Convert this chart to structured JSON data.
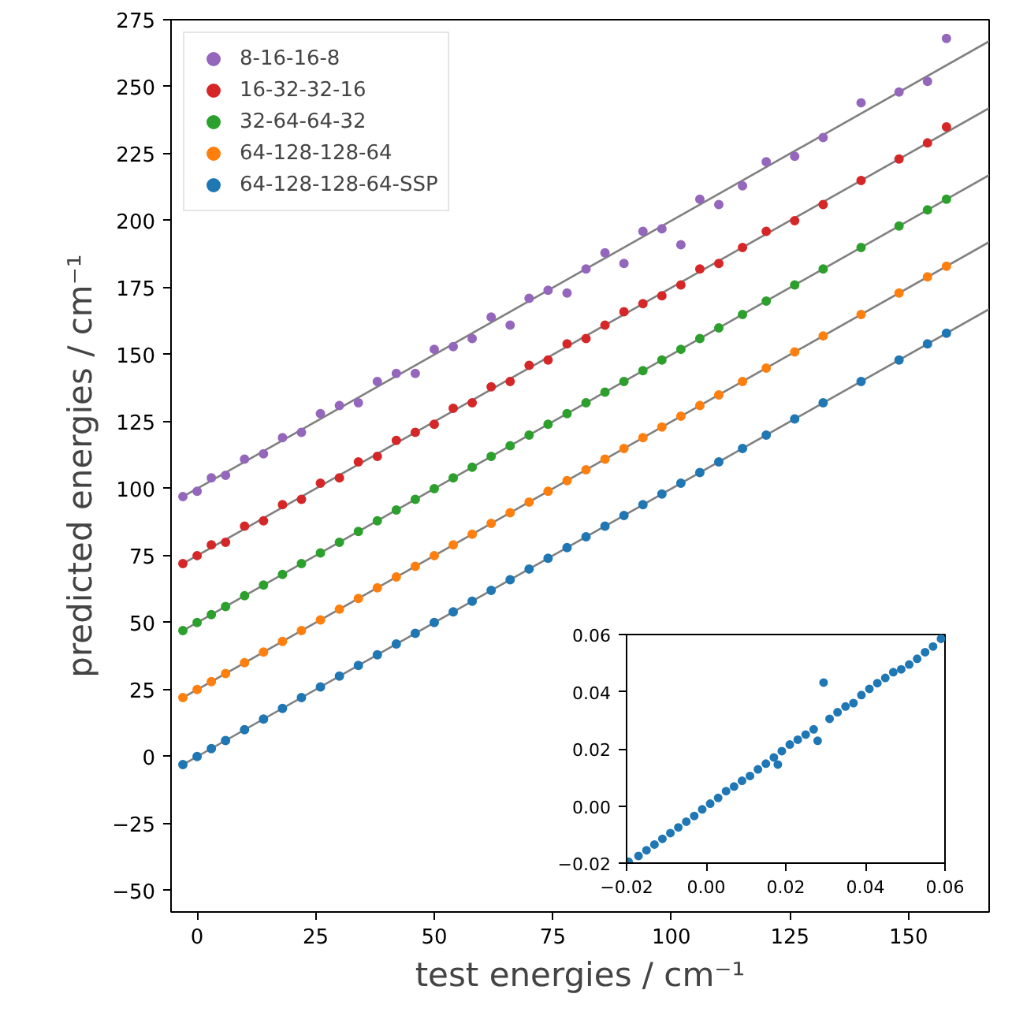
{
  "chart_data": [
    {
      "type": "scatter",
      "xlabel": "test energies / cm⁻¹",
      "ylabel": "predicted energies / cm⁻¹",
      "xlim": [
        -5.5,
        167
      ],
      "ylim": [
        -58,
        275
      ],
      "xticks": [
        0,
        25,
        50,
        75,
        100,
        125,
        150
      ],
      "yticks": [
        {
          "value": -50,
          "label": "−50"
        },
        {
          "value": -25,
          "label": "−25"
        },
        0,
        25,
        50,
        75,
        100,
        125,
        150,
        175,
        200,
        225,
        250,
        275
      ],
      "grid": false,
      "legend": "top left",
      "marker": "circle",
      "x": [
        -3,
        0,
        3,
        6,
        10,
        14,
        18,
        22,
        26,
        30,
        34,
        38,
        42,
        46,
        50,
        54,
        58,
        62,
        66,
        70,
        74,
        78,
        82,
        86,
        90,
        94,
        98,
        102,
        106,
        110,
        115,
        120,
        126,
        132,
        140,
        148,
        154,
        158
      ],
      "series": [
        {
          "name": "8-16-16-8",
          "color": "#9467bd",
          "values": [
            97,
            99,
            104,
            105,
            111,
            113,
            119,
            121,
            128,
            131,
            132,
            140,
            143,
            143,
            152,
            153,
            156,
            164,
            161,
            171,
            174,
            173,
            182,
            188,
            184,
            196,
            197,
            191,
            208,
            206,
            213,
            222,
            224,
            231,
            244,
            248,
            252,
            268
          ]
        },
        {
          "name": "16-32-32-16",
          "color": "#d62728",
          "values": [
            72,
            75,
            79,
            80,
            86,
            88,
            94,
            96,
            102,
            104,
            110,
            112,
            118,
            121,
            124,
            130,
            132,
            138,
            140,
            146,
            148,
            154,
            156,
            161,
            166,
            169,
            172,
            176,
            182,
            184,
            190,
            196,
            200,
            206,
            215,
            223,
            229,
            235
          ]
        },
        {
          "name": "32-64-64-32",
          "color": "#2ca02c",
          "values": [
            47,
            50,
            53,
            56,
            60,
            64,
            68,
            72,
            76,
            80,
            84,
            88,
            92,
            96,
            100,
            104,
            108,
            112,
            116,
            120,
            124,
            128,
            132,
            136,
            140,
            144,
            148,
            152,
            156,
            160,
            165,
            170,
            176,
            182,
            190,
            198,
            204,
            208
          ]
        },
        {
          "name": "64-128-128-64",
          "color": "#ff7f0e",
          "values": [
            22,
            25,
            28,
            31,
            35,
            39,
            43,
            47,
            51,
            55,
            59,
            63,
            67,
            71,
            75,
            79,
            83,
            87,
            91,
            95,
            99,
            103,
            107,
            111,
            115,
            119,
            123,
            127,
            131,
            135,
            140,
            145,
            151,
            157,
            165,
            173,
            179,
            183
          ]
        },
        {
          "name": "64-128-128-64-SSP",
          "color": "#1f77b4",
          "values": [
            -3,
            0,
            3,
            6,
            10,
            14,
            18,
            22,
            26,
            30,
            34,
            38,
            42,
            46,
            50,
            54,
            58,
            62,
            66,
            70,
            74,
            78,
            82,
            86,
            90,
            94,
            98,
            102,
            106,
            110,
            115,
            120,
            126,
            132,
            140,
            148,
            154,
            158
          ]
        },
        {
          "type": "line",
          "marker": "none",
          "color": "#808080",
          "x": [
            -3,
            167
          ],
          "values": [
            97,
            267
          ]
        },
        {
          "type": "line",
          "marker": "none",
          "color": "#808080",
          "x": [
            -3,
            167
          ],
          "values": [
            72,
            242
          ]
        },
        {
          "type": "line",
          "marker": "none",
          "color": "#808080",
          "x": [
            -3,
            167
          ],
          "values": [
            47,
            217
          ]
        },
        {
          "type": "line",
          "marker": "none",
          "color": "#808080",
          "x": [
            -3,
            167
          ],
          "values": [
            22,
            192
          ]
        },
        {
          "type": "line",
          "marker": "none",
          "color": "#808080",
          "x": [
            -3,
            167
          ],
          "values": [
            -3,
            167
          ]
        }
      ]
    },
    {
      "type": "scatter",
      "xlim": [
        -0.02,
        0.06
      ],
      "ylim": [
        -0.02,
        0.06
      ],
      "xticks": [
        {
          "value": -0.02,
          "label": "−0.02"
        },
        {
          "value": 0,
          "label": "0.00"
        },
        0.02,
        0.04,
        0.06
      ],
      "yticks": [
        {
          "value": -0.02,
          "label": "−0.02"
        },
        {
          "value": 0,
          "label": "0.00"
        },
        0.02,
        0.04,
        0.06
      ],
      "grid": false,
      "marker": "circle",
      "series": [
        {
          "color": "#1f77b4",
          "x": [
            -0.0195,
            -0.017,
            -0.015,
            -0.013,
            -0.011,
            -0.009,
            -0.007,
            -0.005,
            -0.003,
            -0.001,
            0.001,
            0.003,
            0.005,
            0.007,
            0.009,
            0.011,
            0.013,
            0.015,
            0.017,
            0.018,
            0.019,
            0.021,
            0.023,
            0.025,
            0.027,
            0.028,
            0.0295,
            0.031,
            0.033,
            0.035,
            0.037,
            0.039,
            0.041,
            0.043,
            0.045,
            0.047,
            0.049,
            0.051,
            0.053,
            0.055,
            0.057,
            0.059
          ],
          "values": [
            -0.0195,
            -0.0175,
            -0.0155,
            -0.0135,
            -0.0115,
            -0.0095,
            -0.0075,
            -0.0055,
            -0.0035,
            -0.0012,
            0.0008,
            0.0028,
            0.0052,
            0.0068,
            0.0088,
            0.0105,
            0.0128,
            0.0148,
            0.017,
            0.0145,
            0.0192,
            0.0215,
            0.0232,
            0.025,
            0.0268,
            0.0228,
            0.0432,
            0.0305,
            0.0328,
            0.0348,
            0.036,
            0.0388,
            0.041,
            0.043,
            0.0448,
            0.0468,
            0.0478,
            0.0495,
            0.0515,
            0.0538,
            0.0558,
            0.0585
          ]
        }
      ]
    }
  ]
}
